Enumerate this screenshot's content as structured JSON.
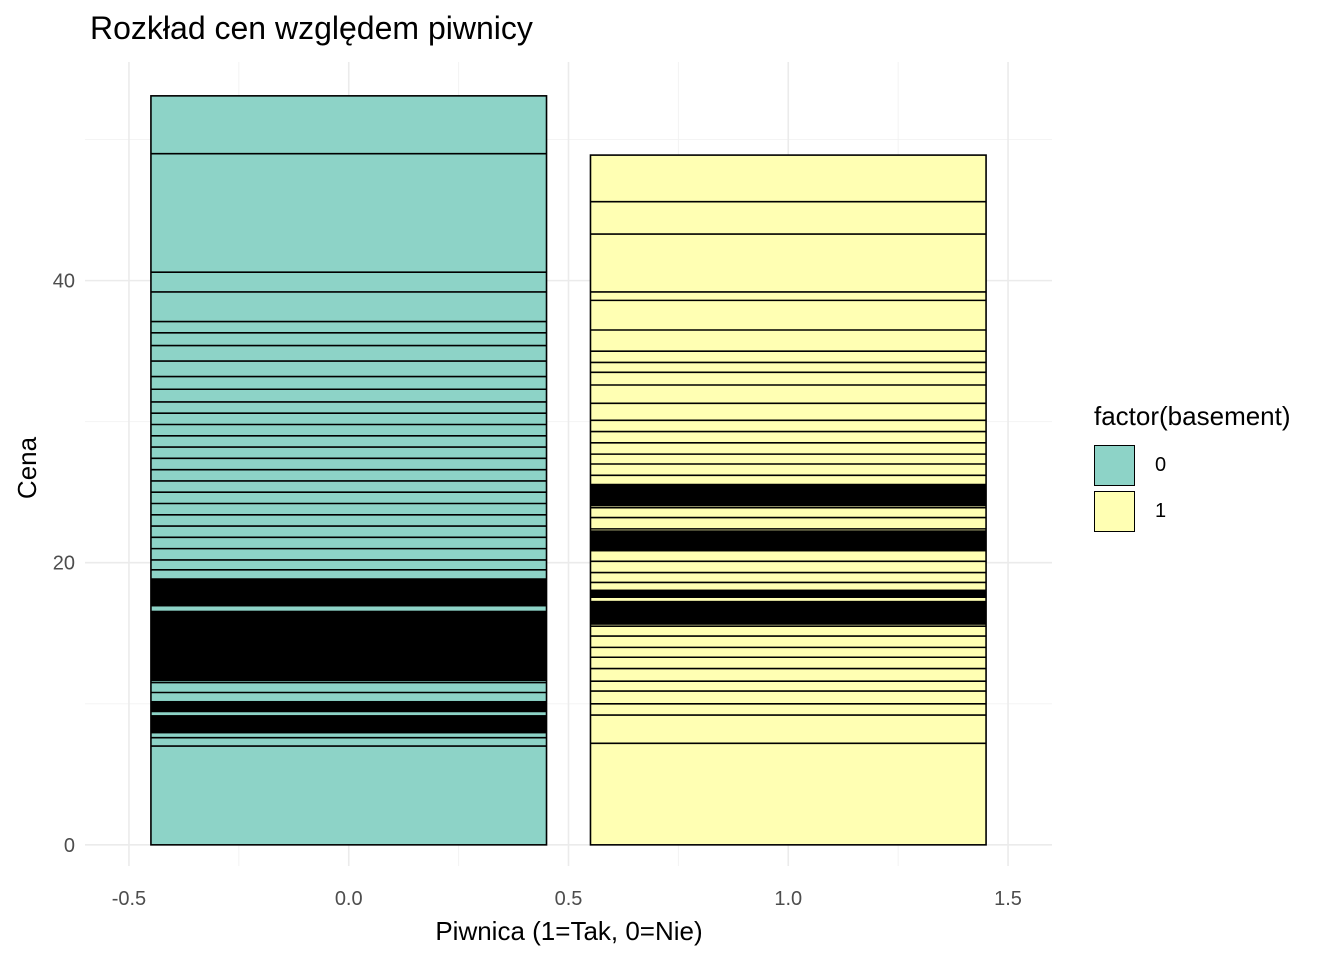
{
  "chart_data": {
    "type": "bar",
    "title": "Rozkład cen względem piwnicy",
    "xlabel": "Piwnica (1=Tak, 0=Nie)",
    "ylabel": "Cena",
    "xlim": [
      -0.6,
      1.6
    ],
    "ylim": [
      -1.5,
      55.5
    ],
    "x_ticks": [
      -0.5,
      0.0,
      0.5,
      1.0,
      1.5
    ],
    "x_tick_labels": [
      "-0.5",
      "0.0",
      "0.5",
      "1.0",
      "1.5"
    ],
    "y_ticks": [
      0,
      20,
      40
    ],
    "y_tick_labels": [
      "0",
      "20",
      "40"
    ],
    "grid": true,
    "legend": {
      "title": "factor(basement)",
      "position": "right",
      "items": [
        {
          "label": "0",
          "color": "#8DD3C7"
        },
        {
          "label": "1",
          "color": "#FFFFB3"
        }
      ]
    },
    "bar_width": 0.9,
    "series": [
      {
        "name": "0",
        "x": 0,
        "color": "#8DD3C7",
        "total": 53.1,
        "segment_boundaries": [
          7.0,
          7.6,
          8.3,
          9.0,
          9.6,
          10.0,
          10.8,
          11.5,
          12.2,
          12.8,
          13.5,
          14.2,
          15.0,
          15.6,
          16.4,
          17.2,
          18.0,
          18.8,
          19.5,
          20.2,
          21.0,
          21.8,
          22.6,
          23.4,
          24.2,
          25.0,
          25.8,
          26.6,
          27.4,
          28.2,
          29.0,
          29.8,
          30.6,
          31.4,
          32.3,
          33.2,
          34.3,
          35.4,
          36.3,
          37.1,
          39.2,
          40.6,
          49.0
        ],
        "dense_bands": [
          [
            7.9,
            9.2
          ],
          [
            9.4,
            10.2
          ],
          [
            11.6,
            16.6
          ],
          [
            16.9,
            18.9
          ]
        ]
      },
      {
        "name": "1",
        "x": 1,
        "color": "#FFFFB3",
        "total": 48.9,
        "segment_boundaries": [
          7.2,
          9.2,
          10.0,
          10.9,
          11.6,
          12.5,
          13.3,
          14.0,
          14.8,
          15.5,
          16.2,
          17.0,
          17.8,
          18.6,
          19.3,
          20.1,
          20.9,
          21.6,
          22.4,
          23.2,
          23.9,
          24.7,
          25.5,
          26.2,
          27.0,
          27.7,
          28.5,
          29.3,
          30.1,
          31.3,
          32.6,
          33.5,
          34.2,
          35.0,
          36.5,
          38.6,
          39.2,
          43.3,
          45.6
        ],
        "dense_bands": [
          [
            15.6,
            17.3
          ],
          [
            17.5,
            18.1
          ],
          [
            20.8,
            22.3
          ],
          [
            24.0,
            25.6
          ]
        ]
      }
    ]
  }
}
